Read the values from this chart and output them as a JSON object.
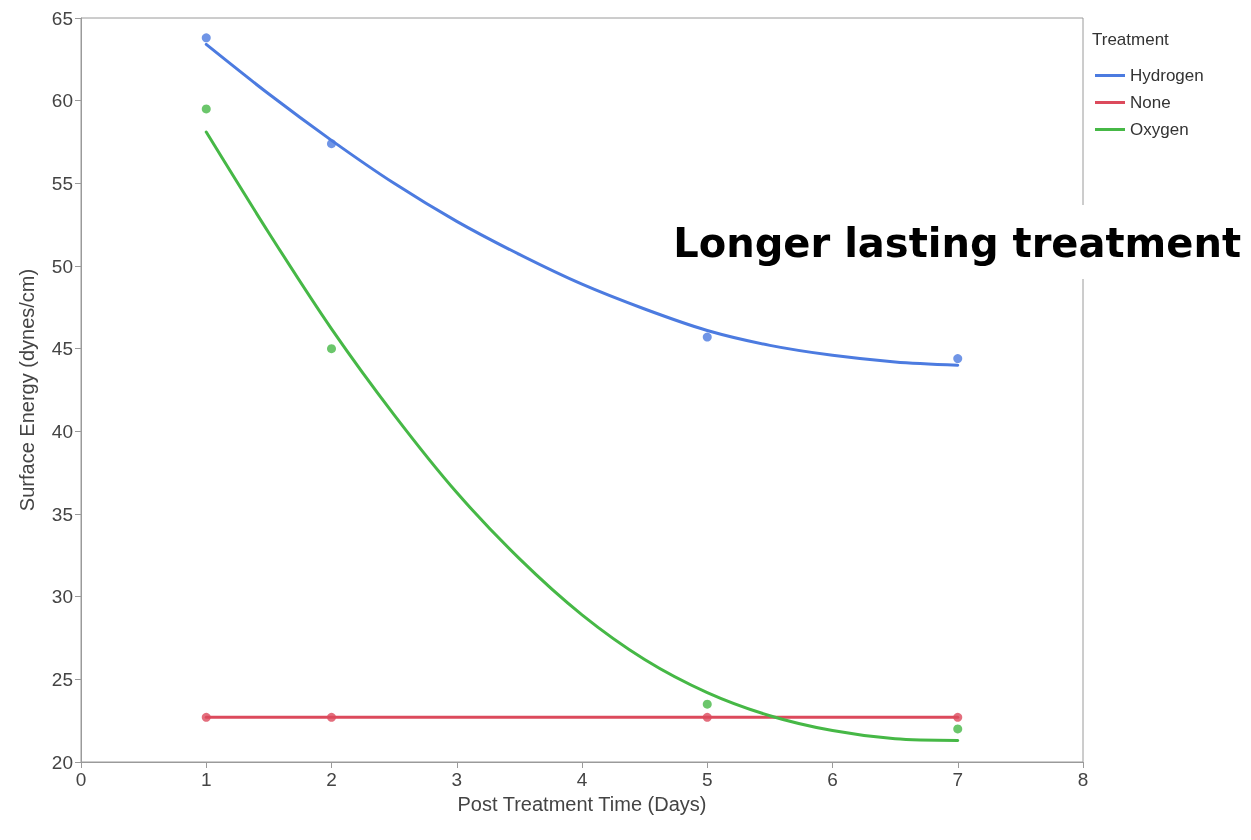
{
  "chart_data": {
    "type": "line",
    "xlabel": "Post Treatment Time (Days)",
    "ylabel": "Surface Energy (dynes/cm)",
    "legend_title": "Treatment",
    "annotations": [
      "Longer lasting treatment"
    ],
    "xlim": [
      0,
      8
    ],
    "xticks": [
      0,
      1,
      2,
      3,
      4,
      5,
      6,
      7,
      8
    ],
    "ylim": [
      20,
      65
    ],
    "yticks": [
      20,
      25,
      30,
      35,
      40,
      45,
      50,
      55,
      60,
      65
    ],
    "grid": false,
    "legend": "top right",
    "marker": "circle",
    "series": [
      {
        "name": "Hydrogen",
        "marker": "none",
        "color": "#4c7be0",
        "x": [
          1,
          1.5,
          2,
          2.5,
          3,
          3.5,
          4,
          4.5,
          5,
          5.5,
          6,
          6.5,
          7
        ],
        "values": [
          63.4,
          60.4,
          57.6,
          55.0,
          52.7,
          50.7,
          48.9,
          47.4,
          46.1,
          45.2,
          44.6,
          44.2,
          44.0
        ]
      },
      {
        "name": "None",
        "marker": "none",
        "color": "#dc4a5c",
        "x": [
          1,
          7
        ],
        "values": [
          22.7,
          22.7
        ]
      },
      {
        "name": "Oxygen",
        "marker": "none",
        "color": "#46b846",
        "x": [
          1,
          1.5,
          2,
          2.5,
          3,
          3.5,
          4,
          4.5,
          5,
          5.5,
          6,
          6.5,
          7
        ],
        "values": [
          58.1,
          52.0,
          46.2,
          41.0,
          36.3,
          32.3,
          28.9,
          26.2,
          24.2,
          22.8,
          21.9,
          21.4,
          21.3
        ]
      },
      {
        "type": "scatter",
        "color": "#4c7be0",
        "x": [
          1,
          2,
          5,
          7
        ],
        "values": [
          63.8,
          57.4,
          45.7,
          44.4
        ]
      },
      {
        "type": "scatter",
        "color": "#dc4a5c",
        "x": [
          1,
          2,
          5,
          7
        ],
        "values": [
          22.7,
          22.7,
          22.7,
          22.7
        ]
      },
      {
        "type": "scatter",
        "color": "#46b846",
        "x": [
          1,
          2,
          5,
          7
        ],
        "values": [
          59.5,
          45.0,
          23.5,
          22.0
        ]
      }
    ]
  }
}
